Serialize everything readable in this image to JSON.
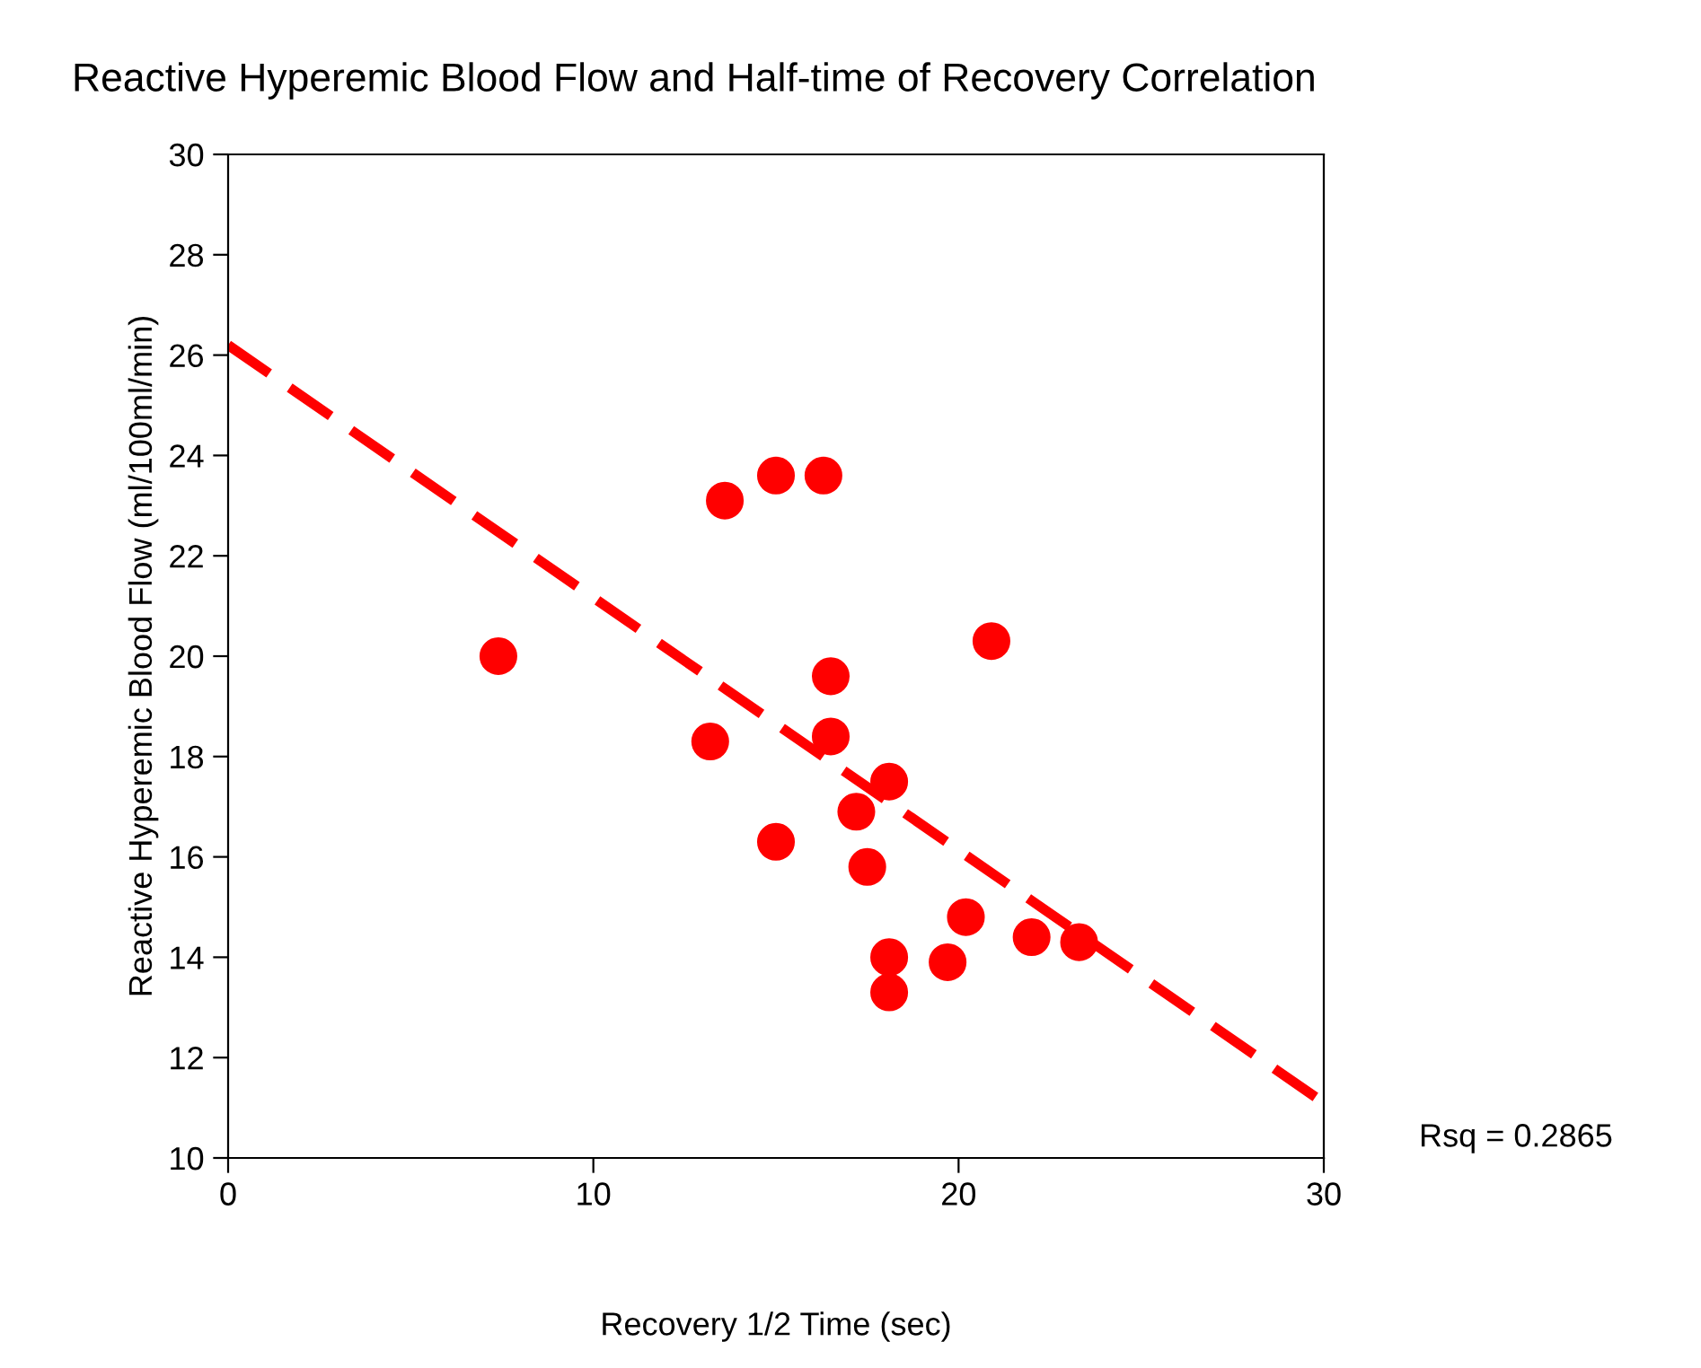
{
  "chart_data": {
    "type": "scatter",
    "title": "Reactive Hyperemic Blood Flow and Half-time of Recovery Correlation",
    "xlabel": "Recovery 1/2 Time (sec)",
    "ylabel": "Reactive Hyperemic Blood Flow (ml/100ml/min)",
    "series": [
      {
        "color": "#ff0000",
        "marker": "circle",
        "x": [
          7.4,
          13.6,
          15.0,
          16.3,
          13.2,
          15.0,
          16.5,
          16.5,
          18.1,
          17.2,
          17.5,
          18.1,
          18.1,
          19.7,
          20.2,
          20.9,
          22.0,
          23.3
        ],
        "values": [
          20.0,
          23.1,
          23.6,
          23.6,
          18.3,
          16.3,
          19.6,
          18.4,
          17.5,
          16.9,
          15.8,
          14.0,
          13.3,
          13.9,
          14.8,
          20.3,
          14.4,
          14.3
        ]
      },
      {
        "type": "line",
        "color": "#ff0000",
        "line_style": "dashed",
        "marker": "none",
        "x": [
          0,
          30
        ],
        "values": [
          26.2,
          11.1
        ]
      }
    ],
    "annotations": [
      "Rsq = 0.2865"
    ],
    "xlim": [
      0,
      30
    ],
    "xticks": [
      0,
      10,
      20,
      30
    ],
    "ylim": [
      10,
      30
    ],
    "yticks": [
      10,
      12,
      14,
      16,
      18,
      20,
      22,
      24,
      26,
      28,
      30
    ],
    "grid": false,
    "legend": false
  }
}
